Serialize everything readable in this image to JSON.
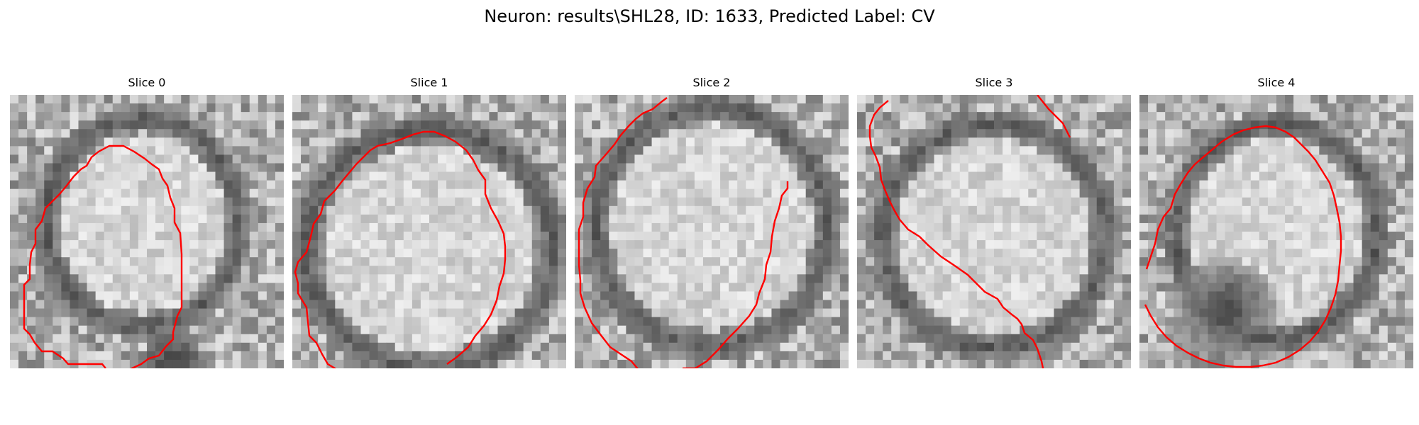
{
  "title": "Neuron: results\\SHL28, ID: 1633, Predicted Label: CV",
  "contour_color": "#ff0000",
  "colormap": "gray",
  "slices": [
    {
      "label": "Slice 0"
    },
    {
      "label": "Slice 1"
    },
    {
      "label": "Slice 2"
    },
    {
      "label": "Slice 3"
    },
    {
      "label": "Slice 4"
    }
  ]
}
